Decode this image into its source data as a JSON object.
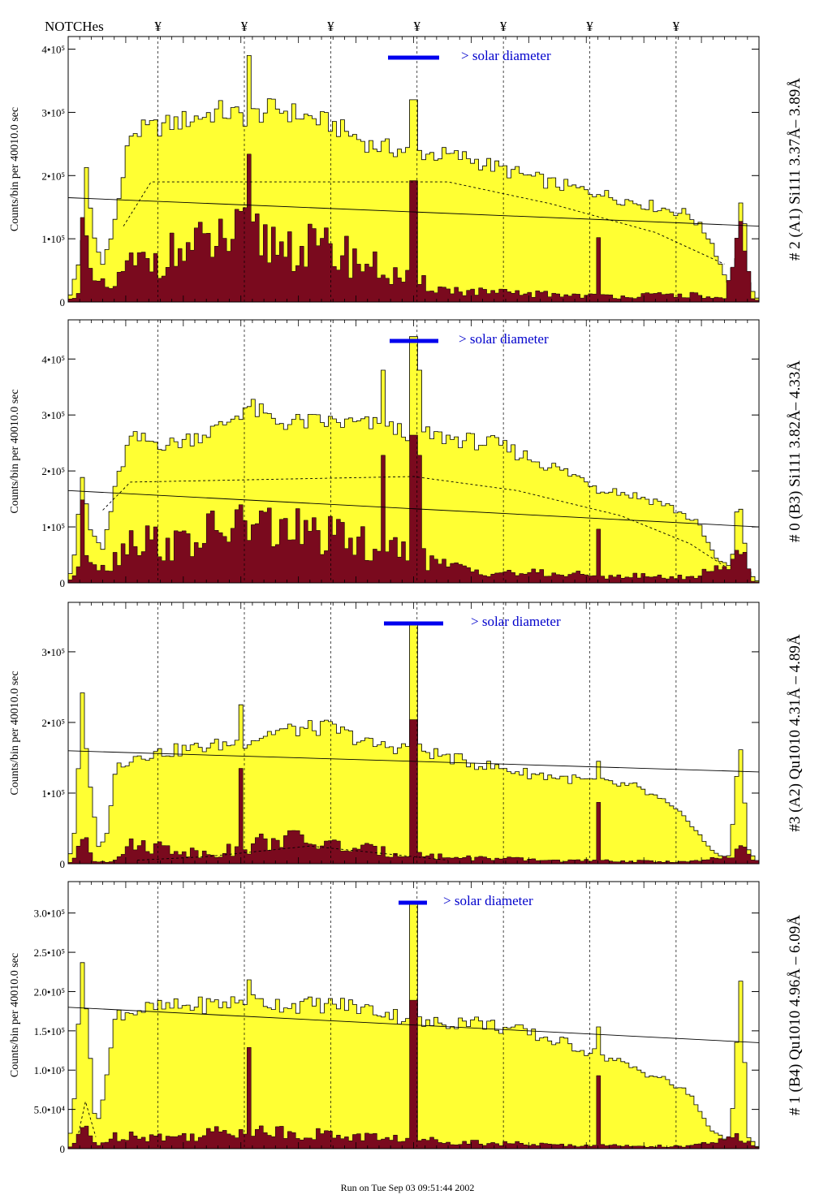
{
  "header": {
    "notches_label": "NOTCHes",
    "notch_symbol": "¥",
    "notch_count": 7
  },
  "footer": {
    "run_text": "Run on Tue Sep 03 09:51:44 2002"
  },
  "colors": {
    "fill_total": "#ffff33",
    "fill_signal": "#7a0a1e",
    "solar_bar": "#0000ee",
    "solar_text": "#0000cc",
    "frame": "#000000"
  },
  "chart_data": [
    {
      "type": "area",
      "panel_title": "# 2 (A1) Si111  3.37Å– 3.89Å",
      "ylabel": "Counts/bin per  40010.0 sec",
      "solar_label": "> solar diameter",
      "ylim": [
        0,
        420000
      ],
      "ytick_labels": [
        "0",
        "1•10⁵",
        "2•10⁵",
        "3•10⁵",
        "4•10⁵"
      ],
      "ytick_values": [
        0,
        100000,
        200000,
        300000,
        400000
      ],
      "total_profile": [
        [
          0,
          0
        ],
        [
          0.02,
          80000
        ],
        [
          0.025,
          240000
        ],
        [
          0.035,
          110000
        ],
        [
          0.05,
          60000
        ],
        [
          0.07,
          140000
        ],
        [
          0.09,
          270000
        ],
        [
          0.15,
          285000
        ],
        [
          0.22,
          305000
        ],
        [
          0.26,
          295000
        ],
        [
          0.3,
          310000
        ],
        [
          0.38,
          285000
        ],
        [
          0.44,
          250000
        ],
        [
          0.5,
          240000
        ],
        [
          0.58,
          230000
        ],
        [
          0.62,
          215000
        ],
        [
          0.7,
          190000
        ],
        [
          0.78,
          170000
        ],
        [
          0.86,
          150000
        ],
        [
          0.9,
          140000
        ],
        [
          0.93,
          100000
        ],
        [
          0.955,
          30000
        ],
        [
          0.97,
          80000
        ],
        [
          0.975,
          190000
        ],
        [
          0.985,
          30000
        ],
        [
          1.0,
          0
        ]
      ],
      "signal_profile": [
        [
          0,
          0
        ],
        [
          0.015,
          20000
        ],
        [
          0.022,
          140000
        ],
        [
          0.03,
          40000
        ],
        [
          0.06,
          20000
        ],
        [
          0.09,
          60000
        ],
        [
          0.15,
          80000
        ],
        [
          0.25,
          110000
        ],
        [
          0.32,
          95000
        ],
        [
          0.4,
          80000
        ],
        [
          0.48,
          40000
        ],
        [
          0.55,
          20000
        ],
        [
          0.62,
          15000
        ],
        [
          0.8,
          10000
        ],
        [
          0.9,
          12000
        ],
        [
          0.95,
          5000
        ],
        [
          0.965,
          60000
        ],
        [
          0.975,
          110000
        ],
        [
          0.99,
          10000
        ],
        [
          1.0,
          0
        ]
      ],
      "spikes": [
        [
          0.26,
          390000
        ],
        [
          0.5,
          320000
        ],
        [
          0.765,
          170000
        ]
      ],
      "model_curve": [
        [
          0.08,
          120000
        ],
        [
          0.12,
          190000
        ],
        [
          0.55,
          190000
        ],
        [
          0.7,
          155000
        ],
        [
          0.85,
          110000
        ],
        [
          0.95,
          60000
        ]
      ],
      "trend_line": [
        [
          0,
          165000
        ],
        [
          1.0,
          120000
        ]
      ]
    },
    {
      "type": "area",
      "panel_title": "# 0 (B3) Si111  3.82Å– 4.33Å",
      "ylabel": "Counts/bin per  40010.0 sec",
      "solar_label": "> solar diameter",
      "ylim": [
        0,
        470000
      ],
      "ytick_labels": [
        "0",
        "1•10⁵",
        "2•10⁵",
        "3•10⁵",
        "4•10⁵"
      ],
      "ytick_values": [
        0,
        100000,
        200000,
        300000,
        400000
      ],
      "total_profile": [
        [
          0,
          0
        ],
        [
          0.01,
          60000
        ],
        [
          0.02,
          200000
        ],
        [
          0.03,
          100000
        ],
        [
          0.05,
          60000
        ],
        [
          0.07,
          180000
        ],
        [
          0.09,
          260000
        ],
        [
          0.15,
          250000
        ],
        [
          0.22,
          280000
        ],
        [
          0.26,
          320000
        ],
        [
          0.3,
          290000
        ],
        [
          0.38,
          290000
        ],
        [
          0.44,
          285000
        ],
        [
          0.5,
          270000
        ],
        [
          0.56,
          260000
        ],
        [
          0.62,
          250000
        ],
        [
          0.7,
          210000
        ],
        [
          0.78,
          170000
        ],
        [
          0.86,
          145000
        ],
        [
          0.91,
          110000
        ],
        [
          0.94,
          40000
        ],
        [
          0.96,
          30000
        ],
        [
          0.97,
          160000
        ],
        [
          0.985,
          20000
        ],
        [
          1.0,
          0
        ]
      ],
      "signal_profile": [
        [
          0,
          0
        ],
        [
          0.015,
          30000
        ],
        [
          0.02,
          110000
        ],
        [
          0.03,
          50000
        ],
        [
          0.06,
          30000
        ],
        [
          0.09,
          90000
        ],
        [
          0.15,
          70000
        ],
        [
          0.25,
          110000
        ],
        [
          0.32,
          100000
        ],
        [
          0.4,
          80000
        ],
        [
          0.48,
          60000
        ],
        [
          0.55,
          30000
        ],
        [
          0.62,
          20000
        ],
        [
          0.75,
          15000
        ],
        [
          0.9,
          10000
        ],
        [
          0.965,
          40000
        ],
        [
          0.975,
          90000
        ],
        [
          0.99,
          5000
        ],
        [
          1.0,
          0
        ]
      ],
      "spikes": [
        [
          0.455,
          380000
        ],
        [
          0.5,
          440000
        ],
        [
          0.51,
          380000
        ],
        [
          0.765,
          160000
        ]
      ],
      "model_curve": [
        [
          0.05,
          130000
        ],
        [
          0.09,
          180000
        ],
        [
          0.5,
          190000
        ],
        [
          0.65,
          165000
        ],
        [
          0.8,
          120000
        ],
        [
          0.9,
          70000
        ],
        [
          0.95,
          30000
        ]
      ],
      "trend_line": [
        [
          0,
          165000
        ],
        [
          1.0,
          100000
        ]
      ]
    },
    {
      "type": "area",
      "panel_title": "#3 (A2) Qu1010  4.31Å – 4.89Å",
      "ylabel": "Counts/bin per  40010.0 sec",
      "solar_label": "> solar diameter",
      "ylim": [
        0,
        370000
      ],
      "ytick_labels": [
        "0",
        "1•10⁵",
        "2•10⁵",
        "3•10⁵"
      ],
      "ytick_values": [
        0,
        100000,
        200000,
        300000
      ],
      "total_profile": [
        [
          0,
          0
        ],
        [
          0.01,
          50000
        ],
        [
          0.02,
          240000
        ],
        [
          0.03,
          120000
        ],
        [
          0.045,
          20000
        ],
        [
          0.055,
          40000
        ],
        [
          0.07,
          140000
        ],
        [
          0.1,
          155000
        ],
        [
          0.18,
          165000
        ],
        [
          0.26,
          175000
        ],
        [
          0.3,
          190000
        ],
        [
          0.38,
          195000
        ],
        [
          0.44,
          170000
        ],
        [
          0.5,
          165000
        ],
        [
          0.58,
          145000
        ],
        [
          0.66,
          130000
        ],
        [
          0.74,
          120000
        ],
        [
          0.82,
          110000
        ],
        [
          0.86,
          90000
        ],
        [
          0.9,
          60000
        ],
        [
          0.93,
          20000
        ],
        [
          0.955,
          5000
        ],
        [
          0.965,
          80000
        ],
        [
          0.972,
          180000
        ],
        [
          0.985,
          20000
        ],
        [
          1.0,
          0
        ]
      ],
      "signal_profile": [
        [
          0,
          0
        ],
        [
          0.012,
          10000
        ],
        [
          0.025,
          50000
        ],
        [
          0.035,
          5000
        ],
        [
          0.06,
          3000
        ],
        [
          0.08,
          20000
        ],
        [
          0.1,
          30000
        ],
        [
          0.2,
          15000
        ],
        [
          0.26,
          25000
        ],
        [
          0.3,
          40000
        ],
        [
          0.4,
          25000
        ],
        [
          0.48,
          15000
        ],
        [
          0.55,
          10000
        ],
        [
          0.7,
          5000
        ],
        [
          0.9,
          3000
        ],
        [
          0.965,
          10000
        ],
        [
          0.975,
          30000
        ],
        [
          1.0,
          0
        ]
      ],
      "spikes": [
        [
          0.25,
          225000
        ],
        [
          0.5,
          340000
        ],
        [
          0.765,
          145000
        ]
      ],
      "model_curve": [
        [
          0.1,
          5000
        ],
        [
          0.2,
          10000
        ],
        [
          0.35,
          25000
        ],
        [
          0.45,
          15000
        ],
        [
          0.55,
          5000
        ]
      ],
      "trend_line": [
        [
          0,
          160000
        ],
        [
          1.0,
          130000
        ]
      ]
    },
    {
      "type": "area",
      "panel_title": "# 1 (B4) Qu1010 4.96Å – 6.09Å",
      "ylabel": "Counts/bin per  40010.0 sec",
      "solar_label": "> solar diameter",
      "ylim": [
        0,
        340000
      ],
      "ytick_labels": [
        "0",
        "5.0•10⁴",
        "1.0•10⁵",
        "1.5•10⁵",
        "2.0•10⁵",
        "2.5•10⁵",
        "3.0•10⁵"
      ],
      "ytick_values": [
        0,
        50000,
        100000,
        150000,
        200000,
        250000,
        300000
      ],
      "total_profile": [
        [
          0,
          0
        ],
        [
          0.01,
          70000
        ],
        [
          0.02,
          260000
        ],
        [
          0.03,
          150000
        ],
        [
          0.04,
          20000
        ],
        [
          0.055,
          90000
        ],
        [
          0.07,
          175000
        ],
        [
          0.12,
          180000
        ],
        [
          0.2,
          185000
        ],
        [
          0.26,
          190000
        ],
        [
          0.32,
          185000
        ],
        [
          0.4,
          185000
        ],
        [
          0.46,
          175000
        ],
        [
          0.52,
          160000
        ],
        [
          0.58,
          165000
        ],
        [
          0.66,
          150000
        ],
        [
          0.74,
          130000
        ],
        [
          0.8,
          110000
        ],
        [
          0.86,
          90000
        ],
        [
          0.9,
          70000
        ],
        [
          0.93,
          25000
        ],
        [
          0.955,
          10000
        ],
        [
          0.965,
          70000
        ],
        [
          0.972,
          230000
        ],
        [
          0.985,
          15000
        ],
        [
          1.0,
          0
        ]
      ],
      "signal_profile": [
        [
          0,
          0
        ],
        [
          0.012,
          10000
        ],
        [
          0.025,
          30000
        ],
        [
          0.04,
          5000
        ],
        [
          0.08,
          20000
        ],
        [
          0.15,
          15000
        ],
        [
          0.25,
          25000
        ],
        [
          0.35,
          20000
        ],
        [
          0.45,
          15000
        ],
        [
          0.55,
          10000
        ],
        [
          0.7,
          5000
        ],
        [
          0.9,
          3000
        ],
        [
          0.97,
          15000
        ],
        [
          1.0,
          0
        ]
      ],
      "spikes": [
        [
          0.26,
          215000
        ],
        [
          0.5,
          315000
        ],
        [
          0.765,
          155000
        ]
      ],
      "model_curve": [
        [
          0.015,
          20000
        ],
        [
          0.025,
          60000
        ],
        [
          0.04,
          15000
        ]
      ],
      "trend_line": [
        [
          0,
          180000
        ],
        [
          1.0,
          135000
        ]
      ]
    }
  ]
}
